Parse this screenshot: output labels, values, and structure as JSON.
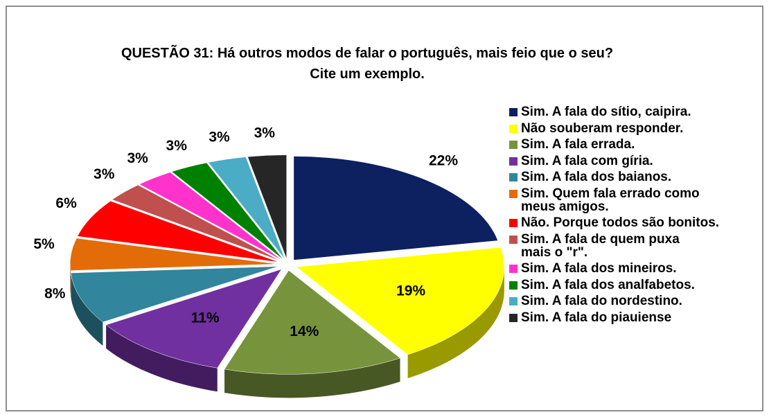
{
  "chart_data": {
    "type": "pie",
    "title": "QUESTÃO 31: Há outros modos de falar o português,  mais feio que o seu?\nCite um exemplo.",
    "categories": [
      "Sim. A fala do sítio, caipira.",
      "Não souberam responder.",
      "Sim. A fala errada.",
      "Sim. A fala com gíria.",
      "Sim. A fala dos baianos.",
      "Sim. Quem fala errado como\nmeus amigos.",
      "Não. Porque todos são bonitos.",
      "Sim. A fala de quem puxa\nmais o \"r\".",
      "Sim. A fala dos mineiros.",
      "Sim. A fala dos analfabetos.",
      "Sim. A fala do nordestino.",
      "Sim. A fala do piauiense"
    ],
    "values": [
      22,
      19,
      14,
      11,
      8,
      5,
      6,
      3,
      3,
      3,
      3,
      3
    ],
    "value_labels": [
      "22%",
      "19%",
      "14%",
      "11%",
      "8%",
      "5%",
      "6%",
      "3%",
      "3%",
      "3%",
      "3%",
      "3%"
    ],
    "colors": [
      "#0d2060",
      "#ffff00",
      "#77933c",
      "#7030a0",
      "#31859c",
      "#e36c09",
      "#ff0000",
      "#c0504d",
      "#ff33cc",
      "#008000",
      "#4bacc6",
      "#262626"
    ],
    "legend": "right"
  }
}
